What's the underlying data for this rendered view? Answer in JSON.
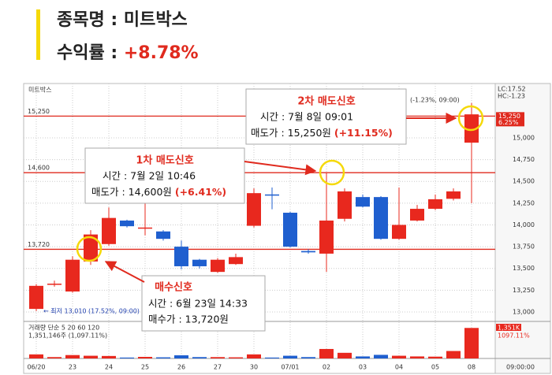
{
  "header": {
    "stock_label": "종목명 : 미트박스",
    "return_label": "수익률 : ",
    "return_value": "+8.78%"
  },
  "chart_data": {
    "type": "candlestick",
    "title": "미트박스",
    "x": [
      "06/20",
      null,
      "23",
      null,
      "24",
      null,
      "25",
      null,
      "26",
      null,
      "27",
      null,
      "30",
      null,
      "07/01",
      null,
      "02",
      null,
      "03",
      null,
      "04",
      null,
      "05",
      null,
      "08"
    ],
    "open": [
      13035,
      13325,
      13235,
      13580,
      13780,
      14050,
      13970,
      13925,
      13750,
      13600,
      13460,
      13550,
      13990,
      14350,
      14140,
      13700,
      13670,
      14070,
      14320,
      14320,
      13840,
      14050,
      14185,
      14300,
      14945
    ],
    "close": [
      13300,
      13325,
      13600,
      13890,
      14080,
      13985,
      13970,
      13840,
      13525,
      13525,
      13600,
      13630,
      14365,
      14340,
      13750,
      13685,
      14050,
      14385,
      14210,
      13840,
      14000,
      14185,
      14295,
      14385,
      15270
    ],
    "high": [
      13320,
      13360,
      13640,
      13940,
      14200,
      14060,
      14280,
      13940,
      13820,
      13610,
      13620,
      13670,
      14420,
      14430,
      14150,
      13720,
      14600,
      14420,
      14350,
      14330,
      14430,
      14230,
      14350,
      14420,
      15400
    ],
    "low": [
      13010,
      13290,
      13220,
      13540,
      13760,
      13970,
      13880,
      13820,
      13490,
      13500,
      13450,
      13540,
      13970,
      14180,
      13740,
      13670,
      13460,
      14040,
      14200,
      13830,
      13830,
      14040,
      14170,
      14280,
      14250
    ],
    "up_color": "#e8281e",
    "down_color": "#1f5fcf",
    "ylim": [
      12950,
      15600
    ],
    "yticks": [
      {
        "value": 13000,
        "label": "13,000"
      },
      {
        "value": 13250,
        "label": "13,250"
      },
      {
        "value": 13500,
        "label": "13,500"
      },
      {
        "value": 13750,
        "label": "13,750"
      },
      {
        "value": 14000,
        "label": "14,000"
      },
      {
        "value": 14250,
        "label": "14,250"
      },
      {
        "value": 14500,
        "label": "14,500"
      },
      {
        "value": 14750,
        "label": "14,750"
      },
      {
        "value": 15000,
        "label": "15,000"
      }
    ],
    "levels": [
      {
        "value": 15250,
        "label": "15,250"
      },
      {
        "value": 14600,
        "label": "14,600"
      },
      {
        "value": 13720,
        "label": "13,720"
      }
    ],
    "level_color": "#e02a1e",
    "price_tag": {
      "value": 15250,
      "label": "15,250",
      "pct": "6.25%"
    },
    "info": [
      "LC:17.52",
      "HC:-1.23"
    ],
    "high_note": "(-1.23%, 09:00)",
    "low_note": "← 최저 13,010 (17.52%, 09:00)",
    "time_label": "09:00:00",
    "volume": {
      "title": "거래량 단순 5 20 60 120",
      "note": "1,351,146주 (1,097.11%)",
      "tag": "1,351K",
      "tag_pct": "1097.11%",
      "values": [
        180000,
        60000,
        150000,
        120000,
        110000,
        40000,
        70000,
        50000,
        140000,
        60000,
        60000,
        50000,
        180000,
        40000,
        120000,
        60000,
        420000,
        250000,
        90000,
        160000,
        120000,
        90000,
        80000,
        330000,
        1351146
      ],
      "ylim": [
        0,
        1500000
      ]
    }
  },
  "annotations": [
    {
      "title": "2차 매도신호",
      "time": "시간 : 7월 8일 09:01",
      "price": "매도가 : 15,250원 ",
      "pct": "(+11.15%)"
    },
    {
      "title": "1차 매도신호",
      "time": "시간 : 7월 2일 10:46",
      "price": "매도가 : 14,600원 ",
      "pct": "(+6.41%)"
    },
    {
      "title": "매수신호",
      "time": "시간 : 6월 23일 14:33",
      "price": "매수가 : 13,720원"
    }
  ]
}
